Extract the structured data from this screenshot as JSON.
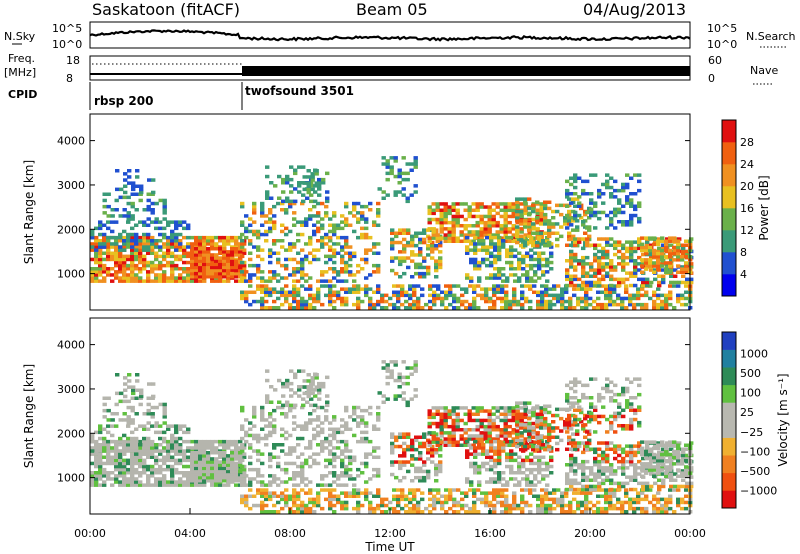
{
  "header": {
    "station": "Saskatoon (fitACF)",
    "beam": "Beam 05",
    "date": "04/Aug/2013"
  },
  "top_panels": {
    "nsky_label": "N.Sky",
    "nsky_tick_hi": "10^5",
    "nsky_tick_lo": "10^0",
    "nsearch_label": "N.Search",
    "nsearch_tick_hi": "10^5",
    "nsearch_tick_lo": "10^0",
    "freq_label": "Freq.",
    "freq_unit": "[MHz]",
    "freq_tick_hi": "18",
    "freq_tick_lo": "8",
    "nave_label": "Nave",
    "nave_tick_hi": "60",
    "nave_tick_lo": "0",
    "cpid_label": "CPID",
    "cpid_modes": [
      {
        "name": "rbsp 200",
        "start_hour": 0
      },
      {
        "name": "twofsound 3501",
        "start_hour": 6
      }
    ]
  },
  "colors": {
    "power_scale": [
      "#0000ee",
      "#2050d0",
      "#3a9a78",
      "#6ab04a",
      "#e8c020",
      "#f09020",
      "#f06010",
      "#e01010"
    ],
    "velocity_scale": [
      "#e01010",
      "#f05010",
      "#f08020",
      "#f0b030",
      "#b8b8b0",
      "#b8b8b0",
      "#60c040",
      "#2e8b57",
      "#2080a0",
      "#2040c0"
    ],
    "ground_scatter": "#b5b5ad"
  },
  "chart_data": [
    {
      "type": "heatmap",
      "name": "power",
      "ylabel": "Slant Range [km]",
      "ylim": [
        180,
        4600
      ],
      "y_ticks": [
        "1000",
        "2000",
        "3000",
        "4000"
      ],
      "x_range_hours": [
        0,
        24
      ],
      "colorbar_label": "Power [dB]",
      "colorbar_ticks": [
        "4",
        "8",
        "12",
        "16",
        "20",
        "24",
        "28"
      ],
      "colorbar_range": [
        0,
        32
      ]
    },
    {
      "type": "heatmap",
      "name": "velocity",
      "ylabel": "Slant Range [km]",
      "ylim": [
        180,
        4600
      ],
      "y_ticks": [
        "1000",
        "2000",
        "3000",
        "4000"
      ],
      "x_range_hours": [
        0,
        24
      ],
      "xlabel": "Time UT",
      "x_ticks": [
        "00:00",
        "04:00",
        "08:00",
        "12:00",
        "16:00",
        "20:00",
        "00:00"
      ],
      "colorbar_label": "Velocity [m s⁻¹]",
      "colorbar_ticks": [
        "1000",
        "500",
        "100",
        "25",
        "−25",
        "−100",
        "−500",
        "−1000"
      ]
    }
  ]
}
